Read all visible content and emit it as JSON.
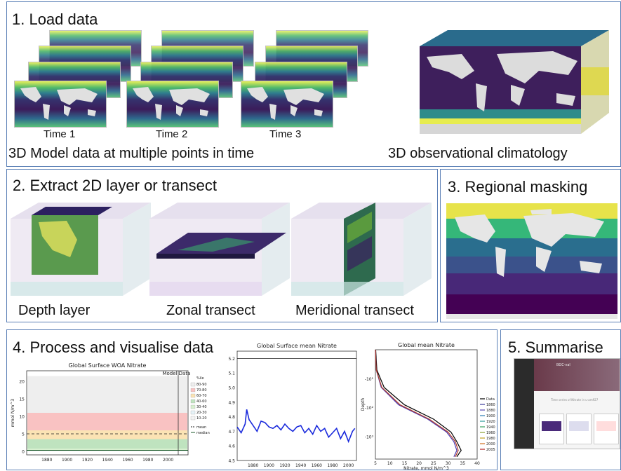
{
  "panel1": {
    "title": "1. Load data",
    "time_labels": [
      "Time 1",
      "Time 2",
      "Time 3"
    ],
    "caption_left": "3D Model data at multiple points in time",
    "caption_right": "3D observational climatology"
  },
  "panel2": {
    "title": "2. Extract 2D layer or transect",
    "labels": [
      "Depth layer",
      "Zonal transect",
      "Meridional transect"
    ]
  },
  "panel3": {
    "title": "3. Regional masking"
  },
  "panel4": {
    "title": "4. Process and visualise data",
    "chart_a": {
      "title": "Global Surface WOA Nitrate",
      "tag1": "Model",
      "tag2": "Data",
      "ylabel": "mmol N/m^3",
      "yticks": [
        "0",
        "5",
        "10",
        "15",
        "20"
      ],
      "xticks": [
        "1880",
        "1900",
        "1920",
        "1940",
        "1960",
        "1980",
        "2000"
      ],
      "legend_title": "%ile",
      "legend": [
        "80-90",
        "70-80",
        "60-70",
        "40-60",
        "30-40",
        "20-30",
        "10-20"
      ],
      "legend_lines": [
        "mean",
        "median"
      ]
    },
    "chart_b": {
      "title": "Global Surface mean Nitrate",
      "yticks": [
        "4.5",
        "4.6",
        "4.7",
        "4.8",
        "4.9",
        "5.0",
        "5.1",
        "5.2"
      ],
      "xticks": [
        "1880",
        "1900",
        "1920",
        "1940",
        "1960",
        "1980",
        "2000"
      ]
    },
    "chart_c": {
      "title": "Global mean Nitrate",
      "ylabel": "Depth",
      "yticks": [
        "-10¹",
        "-10²",
        "-10³"
      ],
      "xticks": [
        "5",
        "10",
        "15",
        "20",
        "25",
        "30",
        "35",
        "40"
      ],
      "xlabel": "Nitrate, mmol N/m^3",
      "legend": [
        "Data",
        "1860",
        "1880",
        "1900",
        "1920",
        "1940",
        "1960",
        "1980",
        "2000",
        "2005"
      ]
    }
  },
  "panel5": {
    "title": "5. Summarise",
    "page_title": "BGC-val",
    "page_sub": "Time series of Nitrate in u-am927"
  },
  "colors": {
    "border": "#5a7fb5",
    "viridis_dark": "#440154",
    "viridis_mid": "#21918c",
    "viridis_light": "#fde725"
  },
  "chart_data": [
    {
      "type": "area",
      "title": "Global Surface WOA Nitrate",
      "ylabel": "mmol N/m^3",
      "ylim": [
        -1,
        23
      ],
      "xlim": [
        1860,
        2010
      ],
      "bands": [
        {
          "name": "80-90",
          "low": 11,
          "high": 21.5
        },
        {
          "name": "70-80",
          "low": 6,
          "high": 11
        },
        {
          "name": "60-70",
          "low": 3.5,
          "high": 6
        },
        {
          "name": "40-60",
          "low": 0.8,
          "high": 3.5
        },
        {
          "name": "30-40",
          "low": 0.4,
          "high": 0.8
        },
        {
          "name": "20-30",
          "low": 0.2,
          "high": 0.4
        },
        {
          "name": "10-20",
          "low": 0.05,
          "high": 0.2
        }
      ],
      "mean": 5,
      "median": 0.3
    },
    {
      "type": "line",
      "title": "Global Surface mean Nitrate",
      "ylim": [
        4.5,
        5.25
      ],
      "xlim": [
        1860,
        2010
      ],
      "x": [
        1860,
        1865,
        1870,
        1872,
        1875,
        1880,
        1885,
        1890,
        1895,
        1900,
        1905,
        1910,
        1915,
        1920,
        1925,
        1930,
        1935,
        1940,
        1945,
        1950,
        1955,
        1960,
        1965,
        1970,
        1975,
        1980,
        1985,
        1990,
        1995,
        2000,
        2005,
        2008
      ],
      "series": [
        {
          "name": "",
          "values": [
            4.73,
            4.69,
            4.75,
            4.85,
            4.78,
            4.74,
            4.7,
            4.77,
            4.76,
            4.73,
            4.72,
            4.74,
            4.71,
            4.75,
            4.72,
            4.7,
            4.73,
            4.74,
            4.69,
            4.72,
            4.68,
            4.74,
            4.7,
            4.72,
            4.66,
            4.69,
            4.72,
            4.65,
            4.7,
            4.63,
            4.7,
            4.72
          ]
        }
      ],
      "reference": 5.2
    },
    {
      "type": "line",
      "title": "Global mean Nitrate",
      "xlabel": "Nitrate, mmol N/m^3",
      "ylabel": "Depth",
      "xlim": [
        5,
        40
      ],
      "log_depth": true,
      "series": [
        {
          "name": "Data",
          "x": [
            5.1,
            5.5,
            8,
            15,
            25,
            31,
            33,
            34.5,
            33
          ],
          "depth": [
            1,
            5,
            20,
            80,
            250,
            700,
            1500,
            3000,
            5000
          ]
        },
        {
          "name": "1860",
          "x": [
            5,
            5.3,
            7,
            13,
            23,
            29.5,
            32,
            33,
            32
          ],
          "depth": [
            1,
            5,
            20,
            80,
            250,
            700,
            1500,
            3000,
            5000
          ]
        },
        {
          "name": "2005",
          "x": [
            5,
            5.3,
            7.2,
            13.5,
            23.5,
            30,
            32.5,
            33.5,
            32.5
          ],
          "depth": [
            1,
            5,
            20,
            80,
            250,
            700,
            1500,
            3000,
            5000
          ]
        }
      ]
    }
  ]
}
